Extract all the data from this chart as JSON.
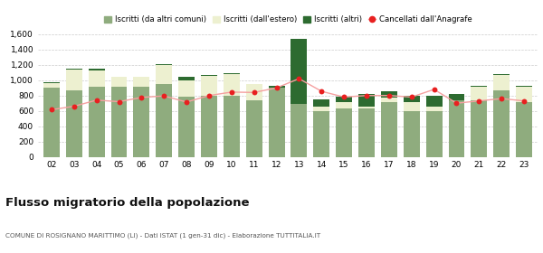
{
  "years": [
    "02",
    "03",
    "04",
    "05",
    "06",
    "07",
    "08",
    "09",
    "10",
    "11",
    "12",
    "13",
    "14",
    "15",
    "16",
    "17",
    "18",
    "19",
    "20",
    "21",
    "22",
    "23"
  ],
  "iscritti_comuni": [
    900,
    870,
    920,
    910,
    910,
    950,
    790,
    800,
    800,
    740,
    900,
    690,
    600,
    635,
    630,
    720,
    600,
    600,
    740,
    740,
    870,
    720
  ],
  "iscritti_estero": [
    60,
    270,
    210,
    135,
    130,
    245,
    210,
    260,
    285,
    205,
    0,
    0,
    55,
    80,
    30,
    55,
    120,
    50,
    0,
    175,
    195,
    195
  ],
  "iscritti_altri": [
    10,
    10,
    20,
    5,
    5,
    10,
    40,
    10,
    10,
    10,
    30,
    850,
    100,
    75,
    165,
    80,
    80,
    145,
    75,
    10,
    15,
    10
  ],
  "cancellati": [
    615,
    660,
    740,
    720,
    775,
    795,
    715,
    800,
    845,
    840,
    900,
    1020,
    855,
    780,
    800,
    800,
    780,
    880,
    700,
    730,
    760,
    730
  ],
  "color_comuni": "#8fac7e",
  "color_estero": "#edf0d0",
  "color_altri": "#2d6b30",
  "color_cancellati": "#e82020",
  "color_line": "#f5a0a0",
  "ylim": [
    0,
    1650
  ],
  "yticks": [
    0,
    200,
    400,
    600,
    800,
    1000,
    1200,
    1400,
    1600
  ],
  "title": "Flusso migratorio della popolazione",
  "subtitle": "COMUNE DI ROSIGNANO MARITTIMO (LI) - Dati ISTAT (1 gen-31 dic) - Elaborazione TUTTITALIA.IT",
  "legend_labels": [
    "Iscritti (da altri comuni)",
    "Iscritti (dall'estero)",
    "Iscritti (altri)",
    "Cancellati dall'Anagrafe"
  ],
  "background_color": "#ffffff"
}
